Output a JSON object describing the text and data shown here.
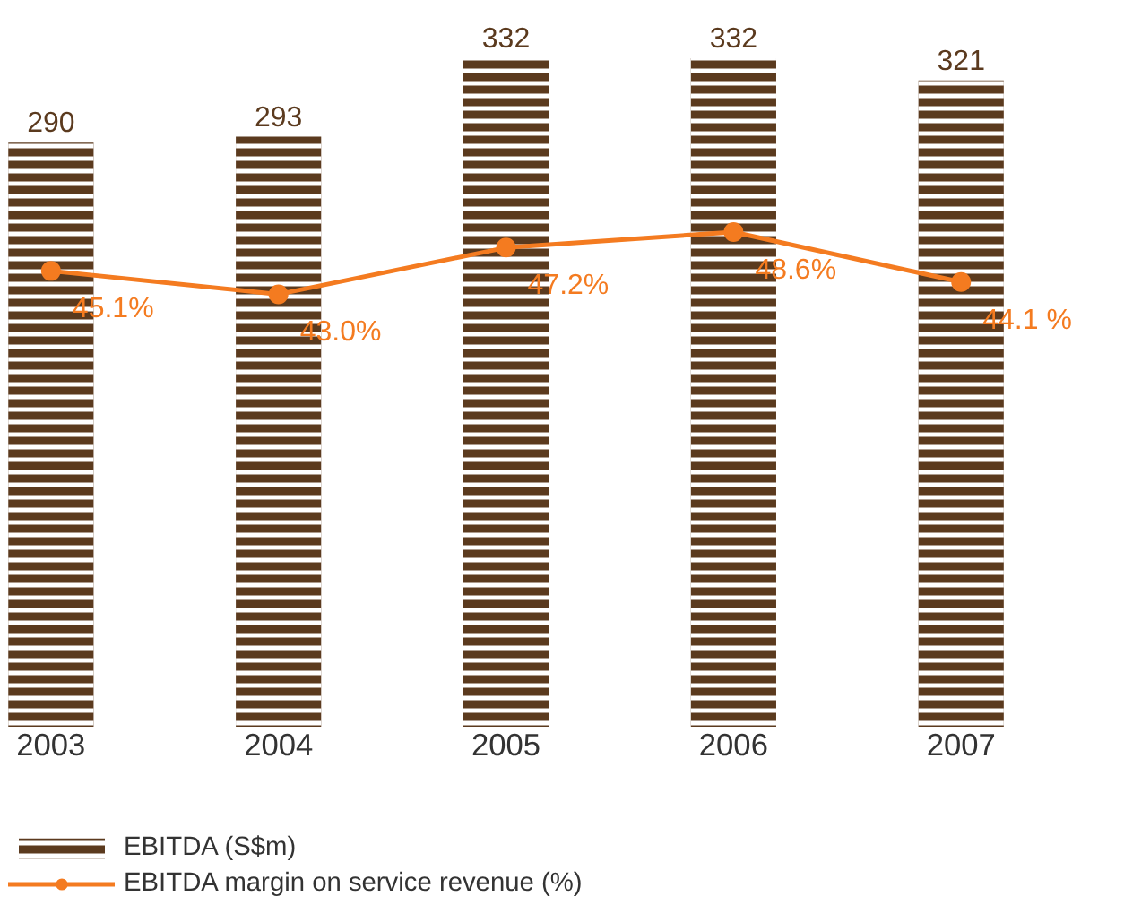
{
  "chart_data": {
    "type": "bar",
    "categories": [
      "2003",
      "2004",
      "2005",
      "2006",
      "2007"
    ],
    "series": [
      {
        "name": "EBITDA (S$m)",
        "color": "#5b3a1e",
        "values": [
          290,
          293,
          332,
          332,
          321
        ]
      },
      {
        "name": "EBITDA margin on service revenue (%)",
        "type": "line",
        "axis": "y2",
        "color": "#f47b20",
        "marker": "circle",
        "values": [
          45.1,
          43.0,
          47.2,
          48.6,
          44.1
        ],
        "value_labels": [
          "45.1%",
          "43.0%",
          "47.2%",
          "48.6%",
          "44.1 %"
        ]
      }
    ],
    "data_labels": true,
    "tick_labels": "x",
    "grid": false,
    "legend": "bottom"
  }
}
